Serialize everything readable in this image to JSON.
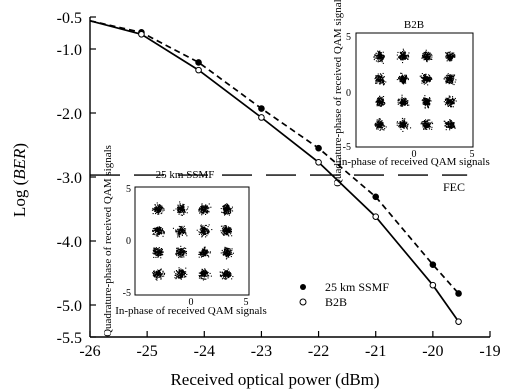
{
  "chart_data": [
    {
      "id": "main",
      "type": "line",
      "title": "",
      "xlabel": "Received optical power (dBm)",
      "ylabel_prefix": "Log (",
      "ylabel_italic": "BER",
      "ylabel_suffix": ")",
      "xlim": [
        -26,
        -19
      ],
      "ylim": [
        -5.5,
        -0.5
      ],
      "xticks": [
        -26,
        -25,
        -24,
        -23,
        -22,
        -21,
        -20,
        -19
      ],
      "yticks": [
        -0.5,
        -1.0,
        -2.0,
        -3.0,
        -4.0,
        -5.0,
        -5.5
      ],
      "ytick_labels": [
        "-0.5",
        "-1.0",
        "-2.0",
        "-3.0",
        "-4.0",
        "-5.0",
        "-5.5"
      ],
      "grid": false,
      "legend_position": "bottom-right",
      "series": [
        {
          "name": "25 km SSMF",
          "style": "dashed",
          "marker": "filled-circle",
          "x": [
            -26,
            -25.1,
            -24.1,
            -23,
            -22,
            -21,
            -20,
            -19.55
          ],
          "y": [
            -0.56,
            -0.74,
            -1.21,
            -1.93,
            -2.55,
            -3.31,
            -4.37,
            -4.82
          ]
        },
        {
          "name": "B2B",
          "style": "solid",
          "marker": "open-circle",
          "x": [
            -26,
            -25.1,
            -24.1,
            -23,
            -22,
            -21,
            -20,
            -19.55
          ],
          "y": [
            -0.56,
            -0.77,
            -1.33,
            -2.07,
            -2.77,
            -3.62,
            -4.69,
            -5.26
          ]
        }
      ],
      "reference_lines": [
        {
          "label": "FEC",
          "y": -2.97,
          "style": "long-dash",
          "x_range": [
            -26,
            -19.4
          ]
        }
      ]
    },
    {
      "id": "inset-b2b",
      "type": "scatter",
      "title": "B2B",
      "xlabel": "In-phase of received QAM signals",
      "ylabel": "Quadrature-phase of received QAM signals",
      "xlim": [
        -5,
        5
      ],
      "ylim": [
        -5,
        5
      ],
      "xtick_labels": [
        "-5",
        "0",
        "5"
      ],
      "ytick_labels": [
        "5",
        "0",
        "-5"
      ],
      "constellation": "16-QAM",
      "symbol_levels": [
        -3,
        -1,
        1,
        3
      ]
    },
    {
      "id": "inset-ssmf",
      "type": "scatter",
      "title": "25 km SSMF",
      "xlabel": "In-phase of received QAM signals",
      "ylabel": "Quadrature-phase of received QAM signals",
      "xlim": [
        -5,
        5
      ],
      "ylim": [
        -5,
        5
      ],
      "xtick_labels": [
        "-5",
        "0",
        "5"
      ],
      "ytick_labels": [
        "5",
        "0",
        "-5"
      ],
      "constellation": "16-QAM",
      "symbol_levels": [
        -3,
        -1,
        1,
        3
      ]
    }
  ]
}
